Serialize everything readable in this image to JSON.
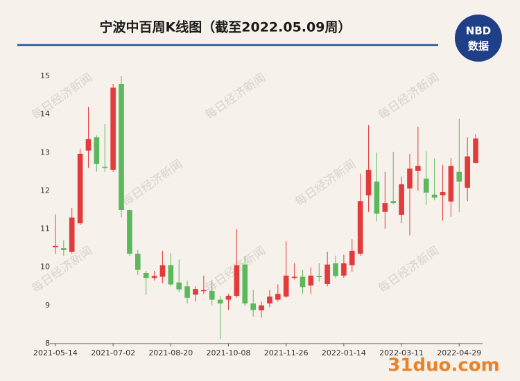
{
  "header": {
    "title": "宁波中百周K线图（截至2022.05.09周）",
    "logo_top": "NBD",
    "logo_bottom": "数据"
  },
  "watermark": "每日经济新闻",
  "site_watermark": "31duo.com",
  "chart_data": {
    "type": "candlestick",
    "categories": [
      "2021-05-14",
      null,
      null,
      null,
      null,
      null,
      null,
      "2021-07-02",
      null,
      null,
      null,
      null,
      null,
      null,
      "2021-08-20",
      null,
      null,
      null,
      null,
      null,
      null,
      "2021-10-08",
      null,
      null,
      null,
      null,
      null,
      null,
      "2021-11-26",
      null,
      null,
      null,
      null,
      null,
      null,
      "2022-01-14",
      null,
      null,
      null,
      null,
      null,
      null,
      "2022-03-11",
      null,
      null,
      null,
      null,
      null,
      null,
      "2022-04-29",
      null,
      null
    ],
    "series": [
      {
        "open": [
          10.52,
          10.5,
          10.4,
          11.15,
          13.05,
          13.4,
          12.63,
          12.55,
          14.8,
          11.5,
          10.35,
          9.85,
          9.72,
          9.75,
          10.05,
          9.6,
          9.5,
          9.28,
          9.38,
          9.38,
          9.15,
          9.15,
          9.25,
          10.07,
          9.05,
          8.87,
          9.05,
          9.15,
          9.23,
          9.72,
          9.75,
          9.52,
          9.77,
          9.56,
          10.1,
          9.78,
          10.05,
          10.35,
          11.88,
          12.24,
          11.45,
          11.73,
          11.37,
          12.06,
          12.52,
          12.32,
          11.9,
          11.88,
          11.72,
          12.5,
          12.08,
          12.73
        ],
        "high": [
          11.38,
          10.7,
          11.55,
          13.1,
          14.2,
          13.45,
          13.75,
          14.8,
          15.0,
          11.5,
          10.45,
          9.9,
          9.9,
          10.43,
          10.37,
          10.2,
          9.65,
          9.5,
          9.78,
          9.65,
          9.25,
          9.3,
          11.0,
          10.28,
          9.4,
          9.1,
          9.4,
          9.55,
          10.68,
          10.1,
          9.93,
          10.0,
          10.1,
          10.4,
          10.3,
          10.33,
          10.73,
          12.45,
          13.72,
          13.0,
          12.5,
          13.02,
          12.37,
          12.97,
          13.68,
          13.03,
          12.85,
          12.68,
          12.86,
          13.88,
          13.4,
          13.48
        ],
        "low": [
          10.35,
          10.3,
          10.35,
          11.1,
          12.6,
          12.5,
          12.5,
          12.5,
          11.3,
          10.3,
          9.8,
          9.28,
          9.65,
          9.58,
          9.5,
          9.35,
          9.05,
          9.1,
          9.3,
          9.0,
          8.12,
          8.88,
          9.2,
          8.98,
          8.7,
          8.68,
          8.95,
          9.1,
          9.2,
          9.68,
          9.3,
          9.3,
          9.62,
          9.5,
          9.72,
          9.72,
          9.88,
          10.3,
          11.45,
          11.2,
          11.0,
          11.65,
          11.15,
          10.83,
          12.0,
          11.63,
          11.75,
          11.22,
          11.32,
          11.44,
          11.73,
          12.73
        ],
        "close": [
          10.56,
          10.45,
          11.3,
          12.97,
          13.35,
          12.7,
          12.6,
          14.7,
          11.5,
          10.35,
          9.93,
          9.72,
          9.77,
          10.05,
          9.55,
          9.42,
          9.2,
          9.43,
          9.4,
          9.15,
          9.05,
          9.25,
          10.05,
          9.05,
          8.88,
          9.0,
          9.23,
          9.3,
          9.78,
          9.75,
          9.48,
          9.78,
          9.74,
          10.07,
          9.77,
          10.1,
          10.43,
          11.73,
          12.55,
          11.4,
          11.68,
          11.68,
          12.17,
          12.58,
          12.65,
          11.95,
          11.82,
          11.97,
          12.65,
          12.24,
          12.9,
          13.37
        ]
      }
    ],
    "up_color": "#e23b3b",
    "down_color": "#5cb85c",
    "ylim": [
      8,
      15
    ],
    "yticks": [
      8,
      9,
      10,
      11,
      12,
      13,
      14,
      15
    ],
    "grid": false
  }
}
